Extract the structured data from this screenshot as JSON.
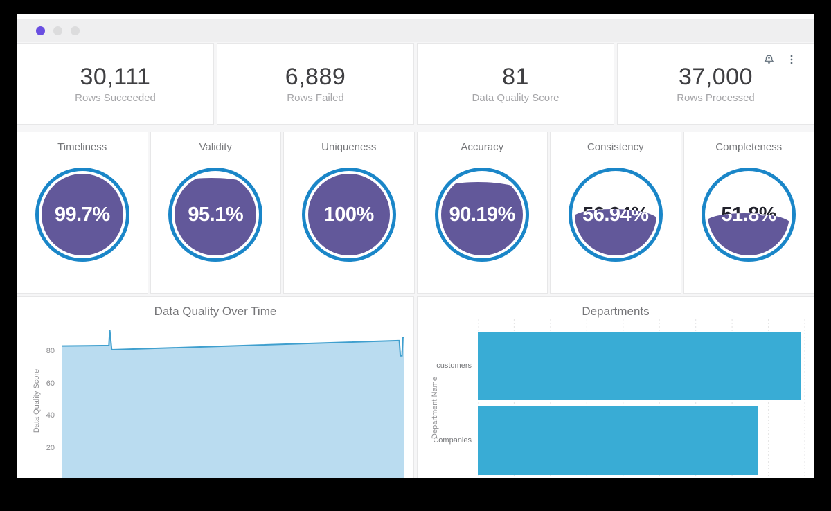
{
  "window": {
    "controls": [
      "#6a4fe1",
      "#dcdcdd",
      "#dcdcdd"
    ],
    "icons": [
      {
        "name": "bell-plus",
        "color": "#5d6b77"
      },
      {
        "name": "kebab-menu",
        "color": "#5d6b77"
      }
    ]
  },
  "stats": {
    "items": [
      {
        "value": "30,111",
        "label": "Rows Succeeded"
      },
      {
        "value": "6,889",
        "label": "Rows Failed"
      },
      {
        "value": "81",
        "label": "Data Quality Score"
      },
      {
        "value": "37,000",
        "label": "Rows Processed"
      }
    ]
  },
  "gauges": {
    "ring_color": "#1a86c8",
    "fill_color": "#62589a",
    "items": [
      {
        "label": "Timeliness",
        "value": "99.7%",
        "percent": 99.7
      },
      {
        "label": "Validity",
        "value": "95.1%",
        "percent": 95.1
      },
      {
        "label": "Uniqueness",
        "value": "100%",
        "percent": 100
      },
      {
        "label": "Accuracy",
        "value": "90.19%",
        "percent": 90.19
      },
      {
        "label": "Consistency",
        "value": "56.94%",
        "percent": 56.94
      },
      {
        "label": "Completeness",
        "value": "51.8%",
        "percent": 51.8
      }
    ]
  },
  "chart_data": [
    {
      "type": "area",
      "title": "Data Quality Over Time",
      "ylabel": "Data Quality Score",
      "ylim": [
        0,
        100
      ],
      "yticks": [
        20,
        40,
        60,
        80
      ],
      "x_axis_labels_visible": false,
      "grid": "horizontal",
      "line_color": "#3f9fce",
      "fill_color": "#badcf0",
      "points_x_percent_vs_score": [
        [
          0,
          83.5
        ],
        [
          13.8,
          83.8
        ],
        [
          14.05,
          93.5
        ],
        [
          14.6,
          81.2
        ],
        [
          98.2,
          86.8
        ],
        [
          98.5,
          86.8
        ],
        [
          98.8,
          77.5
        ],
        [
          99.3,
          77.5
        ],
        [
          99.55,
          88.9
        ],
        [
          100,
          88.9
        ]
      ]
    },
    {
      "type": "bar",
      "orientation": "horizontal",
      "title": "Departments",
      "ylabel": "Department Name",
      "categories": [
        "customers",
        "Companies"
      ],
      "values_percent_of_axis": [
        98.9,
        85.6
      ],
      "xlim": [
        0,
        100
      ],
      "x_axis_labels_visible": false,
      "grid": "vertical-dashed",
      "bar_color": "#39acd5"
    }
  ]
}
